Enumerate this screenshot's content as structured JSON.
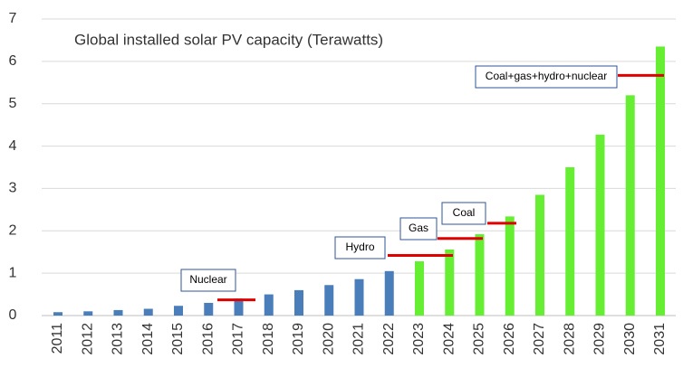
{
  "chart_data": {
    "type": "bar",
    "title": "Global installed solar PV capacity (Terawatts)",
    "categories": [
      "2011",
      "2012",
      "2013",
      "2014",
      "2015",
      "2016",
      "2017",
      "2018",
      "2019",
      "2020",
      "2021",
      "2022",
      "2023",
      "2024",
      "2025",
      "2026",
      "2027",
      "2028",
      "2029",
      "2030",
      "2031"
    ],
    "values": [
      0.08,
      0.1,
      0.13,
      0.16,
      0.23,
      0.3,
      0.4,
      0.5,
      0.6,
      0.72,
      0.86,
      1.05,
      1.28,
      1.56,
      1.92,
      2.34,
      2.85,
      3.5,
      4.27,
      5.2,
      6.35
    ],
    "colors": [
      "#4a7ebb",
      "#4a7ebb",
      "#4a7ebb",
      "#4a7ebb",
      "#4a7ebb",
      "#4a7ebb",
      "#4a7ebb",
      "#4a7ebb",
      "#4a7ebb",
      "#4a7ebb",
      "#4a7ebb",
      "#4a7ebb",
      "#66ee33",
      "#66ee33",
      "#66ee33",
      "#66ee33",
      "#66ee33",
      "#66ee33",
      "#66ee33",
      "#66ee33",
      "#66ee33"
    ],
    "ylim": [
      0,
      7
    ],
    "yticks": [
      0,
      1,
      2,
      3,
      4,
      5,
      6,
      7
    ],
    "grid": true,
    "annotations": [
      {
        "text": "Nuclear",
        "value": 0.37,
        "color": "#e00000"
      },
      {
        "text": "Hydro",
        "value": 1.42,
        "color": "#e00000"
      },
      {
        "text": "Gas",
        "value": 1.82,
        "color": "#e00000"
      },
      {
        "text": "Coal",
        "value": 2.18,
        "color": "#e00000"
      },
      {
        "text": "Coal+gas+hydro+nuclear",
        "value": 5.67,
        "color": "#e00000"
      }
    ]
  }
}
